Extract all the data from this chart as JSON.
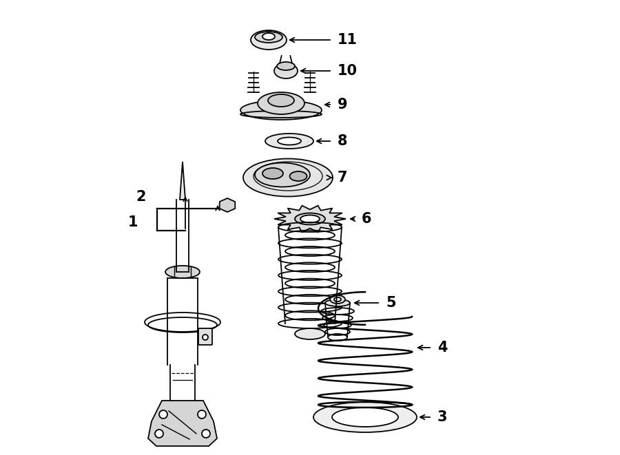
{
  "background_color": "#ffffff",
  "line_color": "#000000",
  "lw": 1.3,
  "fig_width": 9.0,
  "fig_height": 6.61,
  "dpi": 100,
  "xlim": [
    0,
    900
  ],
  "ylim": [
    0,
    661
  ]
}
